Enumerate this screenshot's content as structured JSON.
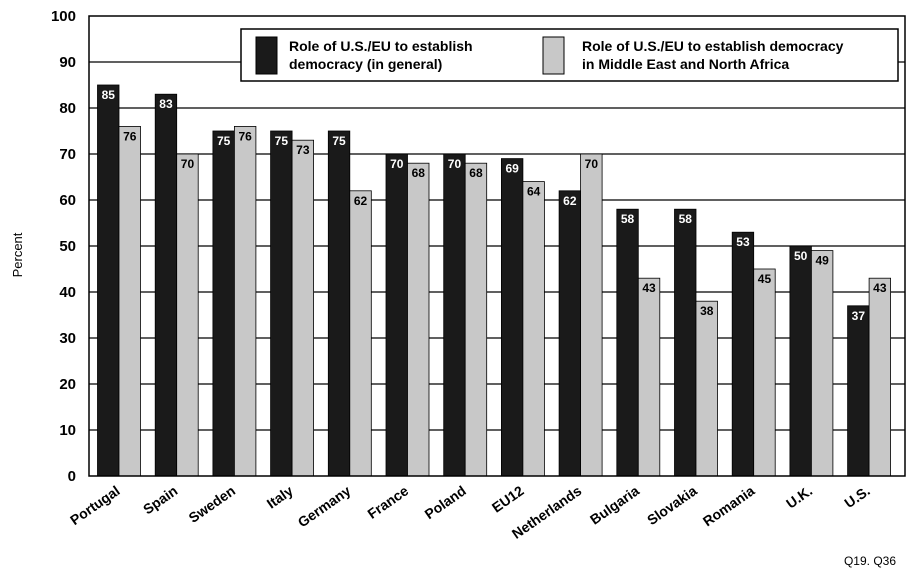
{
  "chart_data": {
    "type": "bar",
    "ylabel": "Percent",
    "ylim": [
      0,
      100
    ],
    "yticks": [
      0,
      10,
      20,
      30,
      40,
      50,
      60,
      70,
      80,
      90,
      100
    ],
    "grid": true,
    "legend_position": "top-right",
    "categories": [
      "Portugal",
      "Spain",
      "Sweden",
      "Italy",
      "Germany",
      "France",
      "Poland",
      "EU12",
      "Netherlands",
      "Bulgaria",
      "Slovakia",
      "Romania",
      "U.K.",
      "U.S."
    ],
    "series": [
      {
        "name": "Role of U.S./EU to establish democracy (in general)",
        "legend_lines": [
          "Role of U.S./EU to establish",
          "democracy (in general)"
        ],
        "color": "#1a1a1a",
        "label_color": "#ffffff",
        "values": [
          85,
          83,
          75,
          75,
          75,
          70,
          70,
          69,
          62,
          58,
          58,
          53,
          50,
          37
        ]
      },
      {
        "name": "Role of U.S./EU to establish democracy in Middle East and North Africa",
        "legend_lines": [
          "Role of U.S./EU to establish democracy",
          "in Middle East and North Africa"
        ],
        "color": "#c8c8c8",
        "label_color": "#000000",
        "values": [
          76,
          70,
          76,
          73,
          62,
          68,
          68,
          64,
          70,
          43,
          38,
          45,
          49,
          43
        ]
      }
    ],
    "footnote": "Q19. Q36"
  }
}
